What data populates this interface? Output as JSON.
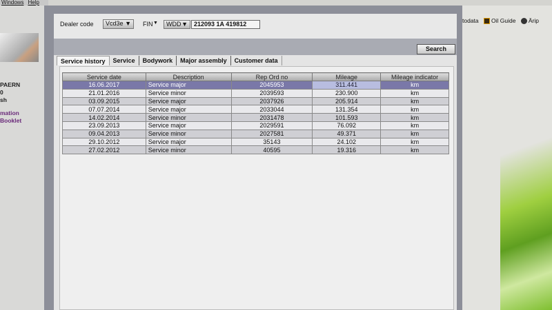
{
  "menubar": {
    "items": [
      "Windows",
      "Help"
    ]
  },
  "sidebar": {
    "lines": [
      "PAERN",
      "0",
      "sh"
    ],
    "links": [
      "mation",
      "Booklet"
    ]
  },
  "browser": {
    "bookmarks": [
      {
        "label": "todata",
        "icon": "none"
      },
      {
        "label": "Oil Guide",
        "icon": "oil-guide-icon"
      },
      {
        "label": "Ärip",
        "icon": "globe-icon"
      }
    ]
  },
  "toolbar": {
    "dealer_code_label": "Dealer code",
    "dealer_code_value": "Vcd3e",
    "fin_label": "FIN",
    "fin_prefix": "WDD",
    "fin_value": "212093 1A 419812",
    "search_label": "Search"
  },
  "tabs": [
    {
      "label": "Service history",
      "active": true
    },
    {
      "label": "Service"
    },
    {
      "label": "Bodywork"
    },
    {
      "label": "Major assembly"
    },
    {
      "label": "Customer data"
    }
  ],
  "table": {
    "columns": [
      "Service date",
      "Description",
      "Rep Ord no",
      "Mileage",
      "Mileage indicator"
    ],
    "rows": [
      [
        "16.06.2017",
        "Service major",
        "2045953",
        "311.441",
        "km"
      ],
      [
        "21.01.2016",
        "Service minor",
        "2039593",
        "230.900",
        "km"
      ],
      [
        "03.09.2015",
        "Service major",
        "2037926",
        "205.914",
        "km"
      ],
      [
        "07.07.2014",
        "Service major",
        "2033044",
        "131.354",
        "km"
      ],
      [
        "14.02.2014",
        "Service minor",
        "2031478",
        "101.593",
        "km"
      ],
      [
        "23.09.2013",
        "Service major",
        "2029591",
        "76.092",
        "km"
      ],
      [
        "09.04.2013",
        "Service minor",
        "2027581",
        "49.371",
        "km"
      ],
      [
        "29.10.2012",
        "Service major",
        "35143",
        "24.102",
        "km"
      ],
      [
        "27.02.2012",
        "Service minor",
        "40595",
        "19.316",
        "km"
      ]
    ],
    "selected_row": 0
  },
  "colors": {
    "selection": "#7a78a8",
    "frame": "#8d8f99"
  }
}
